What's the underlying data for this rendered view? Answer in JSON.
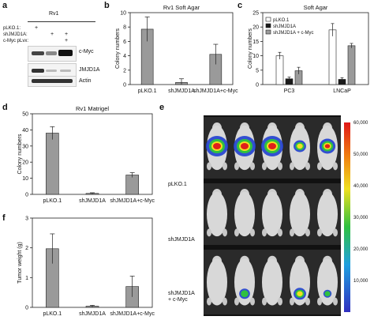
{
  "panels": {
    "a": {
      "label": "a",
      "cell_line": "Rv1",
      "conditions": [
        {
          "name": "pLKO.1:",
          "marks": [
            "+",
            "",
            ""
          ]
        },
        {
          "name": "shJMJD1A:",
          "marks": [
            "",
            "+",
            "+"
          ]
        },
        {
          "name": "c-Myc pLvx:",
          "marks": [
            "",
            "",
            "+"
          ]
        }
      ],
      "blots": [
        "c-Myc",
        "JMJD1A",
        "Actin"
      ]
    },
    "b": {
      "label": "b"
    },
    "c": {
      "label": "c"
    },
    "d": {
      "label": "d"
    },
    "e": {
      "label": "e",
      "row_labels": [
        "pLKO.1",
        "shJMJD1A",
        "shJMJD1A\n+ c-Myc"
      ],
      "scale_ticks": [
        "60,000",
        "50,000",
        "40,000",
        "30,000",
        "20,000",
        "10,000"
      ]
    },
    "f": {
      "label": "f"
    }
  },
  "colors": {
    "gray_bar": "#9a9a9a",
    "black_bar": "#1a1a1a",
    "white_bar": "#ffffff",
    "hot": "#e0201a"
  },
  "chart_data": [
    {
      "id": "b",
      "type": "bar",
      "title": "Rv1 Soft Agar",
      "ylabel": "Colony numbers",
      "categories": [
        "pLKO.1",
        "shJMJD1A",
        "shJMJD1A+c-Myc"
      ],
      "values": [
        7.7,
        0.3,
        4.2
      ],
      "errors": [
        1.7,
        0.5,
        1.4
      ],
      "yticks": [
        "0",
        "2",
        "4",
        "6",
        "8",
        "10"
      ],
      "ylim": [
        0,
        10
      ]
    },
    {
      "id": "c",
      "type": "bar",
      "title": "Soft Agar",
      "ylabel": "Colony numbers",
      "categories": [
        "PC3",
        "LNCaP"
      ],
      "series": [
        {
          "name": "pLKO.1",
          "values": [
            10.0,
            19.0
          ],
          "errors": [
            1.2,
            2.2
          ]
        },
        {
          "name": "shJMJD1A",
          "values": [
            2.0,
            1.8
          ],
          "errors": [
            0.6,
            0.6
          ]
        },
        {
          "name": "shJMJD1A + c-Myc",
          "values": [
            4.8,
            13.5
          ],
          "errors": [
            1.2,
            0.8
          ]
        }
      ],
      "yticks": [
        "0",
        "5",
        "10",
        "15",
        "20",
        "25"
      ],
      "ylim": [
        0,
        25
      ],
      "legend": "top-left"
    },
    {
      "id": "d",
      "type": "bar",
      "title": "Rv1 Matrigel",
      "ylabel": "Colony numbers",
      "categories": [
        "pLKO.1",
        "shJMJD1A",
        "shJMJD1A+c-Myc"
      ],
      "values": [
        38,
        0.6,
        12
      ],
      "errors": [
        4,
        0.4,
        1.5
      ],
      "yticks": [
        "0",
        "10",
        "20",
        "30",
        "40",
        "50"
      ],
      "ylim": [
        0,
        50
      ]
    },
    {
      "id": "f",
      "type": "bar",
      "title": "",
      "ylabel": "Tumor weight (g)",
      "categories": [
        "pLKO.1",
        "shJMJD1A",
        "shJMJD1A+c-Myc"
      ],
      "values": [
        1.97,
        0.04,
        0.7
      ],
      "errors": [
        0.5,
        0.03,
        0.35
      ],
      "yticks": [
        "0",
        "1",
        "2",
        "3"
      ],
      "ylim": [
        0,
        3
      ]
    }
  ]
}
